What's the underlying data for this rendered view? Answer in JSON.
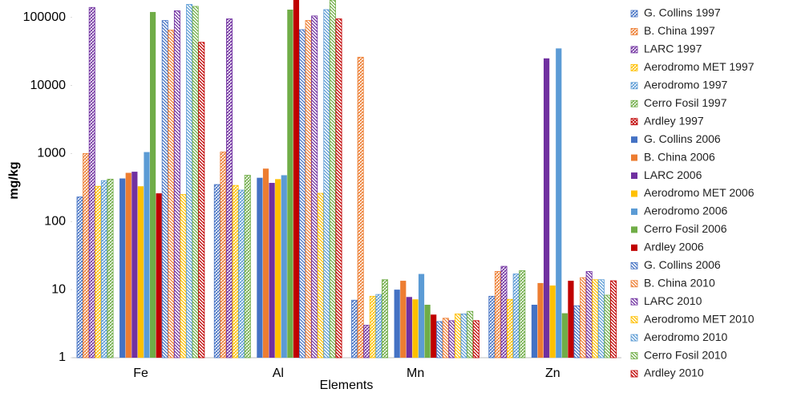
{
  "chart_data": {
    "type": "bar",
    "x_label": "Elements",
    "y_label": "mg/kg",
    "log_scale": true,
    "grid": false,
    "legend": "right",
    "categories": [
      "Fe",
      "Al",
      "Mn",
      "Zn"
    ],
    "ylim": [
      1,
      180000
    ],
    "yticks": [
      1,
      10,
      100,
      1000,
      10000,
      100000
    ],
    "series": [
      {
        "name": "G. Collins 1997",
        "color": "#4472c4",
        "pattern": "hatch",
        "values": [
          230,
          350,
          7,
          8
        ]
      },
      {
        "name": "B. China 1997",
        "color": "#ed7d31",
        "pattern": "hatch",
        "values": [
          1000,
          1050,
          26000,
          18.5
        ]
      },
      {
        "name": "LARC 1997",
        "color": "#7030a0",
        "pattern": "hatch",
        "values": [
          140000,
          95000,
          3,
          22
        ]
      },
      {
        "name": "Aerodromo MET 1997",
        "color": "#ffc000",
        "pattern": "hatch",
        "values": [
          330,
          340,
          8,
          7.2
        ]
      },
      {
        "name": "Aerodromo 1997",
        "color": "#5b9bd5",
        "pattern": "hatch",
        "values": [
          400,
          290,
          8.5,
          17
        ]
      },
      {
        "name": "Cerro Fosil 1997",
        "color": "#70ad47",
        "pattern": "hatch",
        "values": [
          420,
          480,
          14,
          19
        ]
      },
      {
        "name": "Ardley 1997",
        "color": "#c00000",
        "pattern": "cross",
        "values": [
          null,
          null,
          null,
          null
        ]
      },
      {
        "name": "G. Collins 2006",
        "color": "#4472c4",
        "pattern": "solid",
        "values": [
          430,
          440,
          10,
          6
        ]
      },
      {
        "name": "B. China 2006",
        "color": "#ed7d31",
        "pattern": "solid",
        "values": [
          520,
          600,
          13.5,
          12.5
        ]
      },
      {
        "name": "LARC 2006",
        "color": "#7030a0",
        "pattern": "solid",
        "values": [
          540,
          370,
          7.8,
          25000
        ]
      },
      {
        "name": "Aerodromo MET 2006",
        "color": "#ffc000",
        "pattern": "solid",
        "values": [
          330,
          420,
          7.2,
          11.5
        ]
      },
      {
        "name": "Aerodromo 2006",
        "color": "#5b9bd5",
        "pattern": "solid",
        "values": [
          1050,
          480,
          17,
          35000
        ]
      },
      {
        "name": "Cerro Fosil 2006",
        "color": "#70ad47",
        "pattern": "solid",
        "values": [
          120000,
          130000,
          6,
          4.5
        ]
      },
      {
        "name": "Ardley 2006",
        "color": "#c00000",
        "pattern": "solid",
        "values": [
          260,
          180000,
          4.3,
          13.5
        ]
      },
      {
        "name": "G. Collins 2006",
        "color": "#4472c4",
        "pattern": "diagonal",
        "values": [
          90000,
          66000,
          3.4,
          5.8
        ]
      },
      {
        "name": "B. China 2010",
        "color": "#ed7d31",
        "pattern": "diagonal",
        "values": [
          65000,
          90000,
          3.8,
          15
        ]
      },
      {
        "name": "LARC 2010",
        "color": "#7030a0",
        "pattern": "diagonal",
        "values": [
          125000,
          105000,
          3.5,
          18.5
        ]
      },
      {
        "name": "Aerodromo MET 2010",
        "color": "#ffc000",
        "pattern": "diagonal",
        "values": [
          250,
          260,
          4.4,
          14
        ]
      },
      {
        "name": "Aerodromo 2010",
        "color": "#5b9bd5",
        "pattern": "diagonal",
        "values": [
          155000,
          130000,
          4.4,
          14
        ]
      },
      {
        "name": "Cerro Fosil 2010",
        "color": "#70ad47",
        "pattern": "diagonal",
        "values": [
          145000,
          180000,
          4.8,
          8.3
        ]
      },
      {
        "name": "Ardley 2010",
        "color": "#c00000",
        "pattern": "diagonal",
        "values": [
          43000,
          95000,
          3.5,
          13.5
        ]
      }
    ]
  }
}
